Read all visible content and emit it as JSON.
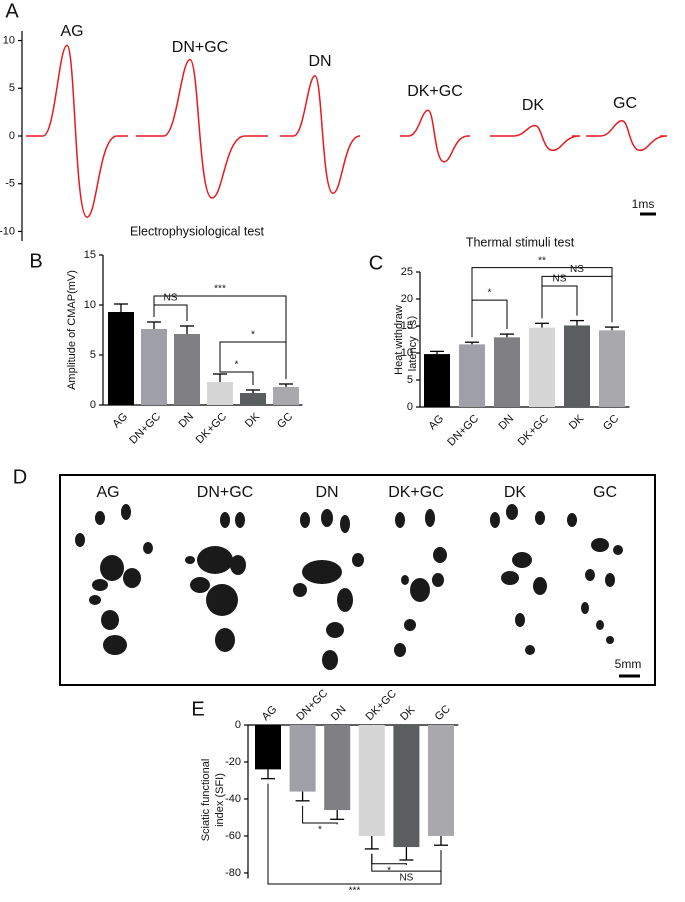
{
  "chart_data": [
    {
      "type": "waveform",
      "panel_label": "A",
      "color": "#e8191f",
      "ylim": [
        -11,
        11
      ],
      "yticks": [
        -10,
        -5,
        0,
        5,
        10
      ],
      "series": [
        {
          "name": "AG",
          "values": [
            9.5,
            -8.5
          ]
        },
        {
          "name": "DN+GC",
          "values": [
            8,
            -6.5
          ]
        },
        {
          "name": "DN",
          "values": [
            6.3,
            -6
          ]
        },
        {
          "name": "DK+GC",
          "values": [
            2.7,
            -2.7
          ]
        },
        {
          "name": "DK",
          "values": [
            1.1,
            -1.5
          ]
        },
        {
          "name": "GC",
          "values": [
            1.6,
            -1.5
          ]
        }
      ],
      "scale_bar": "1ms"
    },
    {
      "type": "bar",
      "panel_label": "B",
      "title": "Electrophysiological test",
      "y_label": [
        "Amplitude of CMAP(mV)"
      ],
      "categories": [
        "AG",
        "DN+GC",
        "DN",
        "DK+GC",
        "DK",
        "GC"
      ],
      "values": [
        9.3,
        7.6,
        7.1,
        2.3,
        1.2,
        1.8
      ],
      "errors": [
        0.8,
        0.7,
        0.8,
        0.8,
        0.3,
        0.3
      ],
      "colors": [
        "#000000",
        "#a0a0a8",
        "#808084",
        "#d6d6d6",
        "#5a5e5e",
        "#a9a9ad"
      ],
      "ylim": [
        0,
        15
      ],
      "yticks": [
        0,
        5,
        10,
        15
      ],
      "annotations": [
        {
          "text": "NS",
          "between": [
            "DN+GC",
            "DN"
          ]
        },
        {
          "text": "***",
          "between": [
            "DN+GC",
            "GC"
          ]
        },
        {
          "text": "*",
          "between": [
            "DK+GC",
            "DK"
          ]
        },
        {
          "text": "*",
          "between": [
            "DK+GC",
            "GC"
          ]
        }
      ]
    },
    {
      "type": "bar",
      "panel_label": "C",
      "title": "Thermal stimuli test",
      "y_label": [
        "Heat withdraw",
        "latency（s）"
      ],
      "categories": [
        "AG",
        "DN+GC",
        "DN",
        "DK+GC",
        "DK",
        "GC"
      ],
      "values": [
        9.8,
        11.6,
        12.9,
        14.7,
        15.1,
        14.2
      ],
      "errors": [
        0.5,
        0.4,
        0.6,
        0.8,
        0.9,
        0.6
      ],
      "colors": [
        "#000000",
        "#a0a0a8",
        "#808084",
        "#d6d6d6",
        "#5a5e5e",
        "#a9a9ad"
      ],
      "ylim": [
        0,
        25
      ],
      "yticks": [
        0,
        5,
        10,
        15,
        20,
        25
      ],
      "annotations": [
        {
          "text": "**",
          "between": [
            "DN+GC",
            "GC"
          ]
        },
        {
          "text": "NS",
          "between": [
            "DK+GC",
            "GC"
          ]
        },
        {
          "text": "NS",
          "between": [
            "DK+GC",
            "DK"
          ]
        },
        {
          "text": "*",
          "between": [
            "DN+GC",
            "DN"
          ]
        }
      ]
    },
    {
      "type": "image",
      "panel_label": "D",
      "labels": [
        "AG",
        "DN+GC",
        "DN",
        "DK+GC",
        "DK",
        "GC"
      ],
      "scale_bar": "5mm"
    },
    {
      "type": "bar",
      "panel_label": "E",
      "y_label": [
        "Sciatic functional",
        "index (SFI)"
      ],
      "categories": [
        "AG",
        "DN+GC",
        "DN",
        "DK+GC",
        "DK",
        "GC"
      ],
      "values": [
        -24,
        -36,
        -46,
        -60,
        -66,
        -60
      ],
      "errors": [
        5,
        5,
        5,
        7,
        7,
        5
      ],
      "colors": [
        "#000000",
        "#a0a0a8",
        "#808084",
        "#d6d6d6",
        "#5a5e5e",
        "#a9a9ad"
      ],
      "ylim": [
        -83,
        0
      ],
      "yticks": [
        -80,
        -60,
        -40,
        -20,
        0
      ],
      "annotations": [
        {
          "text": "*",
          "between": [
            "DN+GC",
            "DN"
          ]
        },
        {
          "text": "*",
          "between": [
            "DK+GC",
            "DK"
          ]
        },
        {
          "text": "NS",
          "between": [
            "DK+GC",
            "GC"
          ]
        },
        {
          "text": "***",
          "between": [
            "AG",
            "GC"
          ]
        }
      ]
    }
  ]
}
